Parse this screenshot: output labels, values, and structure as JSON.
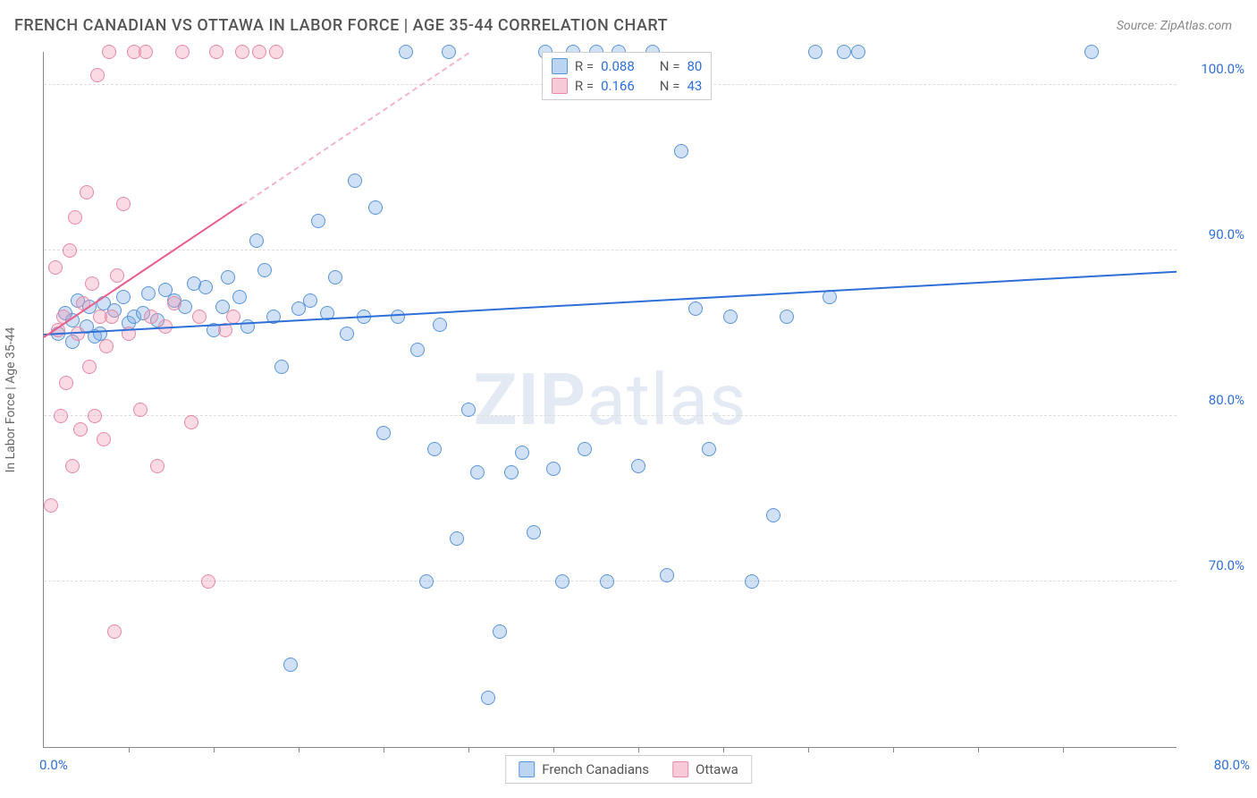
{
  "title": "FRENCH CANADIAN VS OTTAWA IN LABOR FORCE | AGE 35-44 CORRELATION CHART",
  "source": "Source: ZipAtlas.com",
  "watermark_bold": "ZIP",
  "watermark_rest": "atlas",
  "chart": {
    "type": "scatter",
    "ylabel": "In Labor Force | Age 35-44",
    "xlim": [
      0,
      80
    ],
    "ylim": [
      60,
      102
    ],
    "xticks_minor": [
      6,
      12,
      18,
      24,
      30,
      36,
      42,
      48,
      54,
      60,
      66,
      72
    ],
    "x_label_0": "0.0%",
    "x_label_max": "80.0%",
    "ygrid": [
      {
        "v": 70,
        "label": "70.0%"
      },
      {
        "v": 80,
        "label": "80.0%"
      },
      {
        "v": 90,
        "label": "90.0%"
      },
      {
        "v": 100,
        "label": "100.0%"
      }
    ],
    "colors": {
      "blue_fill": "#78aae6",
      "blue_stroke": "#5a95d8",
      "blue_line": "#2e6fd8",
      "pink_fill": "#f096af",
      "pink_stroke": "#e58aa5",
      "pink_line": "#e85f8d",
      "grid": "#dddddd",
      "axis": "#888888",
      "bg": "#ffffff",
      "text": "#555555",
      "tick_label": "#2e6fd8"
    },
    "series": [
      {
        "name": "French Canadians",
        "color_key": "blue",
        "trend": {
          "x1": 0,
          "y1": 85.0,
          "x2": 80,
          "y2": 88.8,
          "solid_until_x": 80
        },
        "points": [
          [
            1,
            85
          ],
          [
            1.5,
            86.2
          ],
          [
            2,
            84.5
          ],
          [
            2,
            85.8
          ],
          [
            2.4,
            87
          ],
          [
            3,
            85.4
          ],
          [
            3.2,
            86.6
          ],
          [
            3.6,
            84.8
          ],
          [
            4,
            85
          ],
          [
            4.2,
            86.8
          ],
          [
            5,
            86.4
          ],
          [
            5.6,
            87.2
          ],
          [
            6,
            85.6
          ],
          [
            6.4,
            86
          ],
          [
            7,
            86.2
          ],
          [
            7.4,
            87.4
          ],
          [
            8,
            85.8
          ],
          [
            8.6,
            87.6
          ],
          [
            9.2,
            87
          ],
          [
            10,
            86.6
          ],
          [
            10.6,
            88
          ],
          [
            11.4,
            87.8
          ],
          [
            12,
            85.2
          ],
          [
            12.6,
            86.6
          ],
          [
            13,
            88.4
          ],
          [
            13.8,
            87.2
          ],
          [
            14.4,
            85.4
          ],
          [
            15,
            90.6
          ],
          [
            15.6,
            88.8
          ],
          [
            16.2,
            86.0
          ],
          [
            16.8,
            83.0
          ],
          [
            17.4,
            65.0
          ],
          [
            18,
            86.5
          ],
          [
            18.8,
            87.0
          ],
          [
            19.4,
            91.8
          ],
          [
            20,
            86.2
          ],
          [
            20.6,
            88.4
          ],
          [
            21.4,
            85.0
          ],
          [
            22,
            94.2
          ],
          [
            22.6,
            86.0
          ],
          [
            23.4,
            92.6
          ],
          [
            24,
            79.0
          ],
          [
            25,
            86.0
          ],
          [
            25.6,
            102
          ],
          [
            26.4,
            84.0
          ],
          [
            27,
            70.0
          ],
          [
            27.6,
            78.0
          ],
          [
            28,
            85.5
          ],
          [
            28.6,
            102
          ],
          [
            29.2,
            72.6
          ],
          [
            30,
            80.4
          ],
          [
            30.6,
            76.6
          ],
          [
            31.4,
            63.0
          ],
          [
            32.2,
            67.0
          ],
          [
            33,
            76.6
          ],
          [
            33.8,
            77.8
          ],
          [
            34.6,
            73.0
          ],
          [
            35.4,
            102
          ],
          [
            36,
            76.8
          ],
          [
            36.6,
            70.0
          ],
          [
            37.4,
            102
          ],
          [
            38.2,
            78.0
          ],
          [
            39,
            102
          ],
          [
            39.8,
            70.0
          ],
          [
            40.6,
            102
          ],
          [
            42,
            77.0
          ],
          [
            43,
            102
          ],
          [
            44,
            70.4
          ],
          [
            45,
            96.0
          ],
          [
            46,
            86.5
          ],
          [
            47,
            78.0
          ],
          [
            48.5,
            86.0
          ],
          [
            50,
            70.0
          ],
          [
            51.5,
            74.0
          ],
          [
            52.5,
            86.0
          ],
          [
            54.5,
            102
          ],
          [
            55.5,
            87.2
          ],
          [
            56.5,
            102
          ],
          [
            57.5,
            102
          ],
          [
            74,
            102
          ]
        ]
      },
      {
        "name": "Ottawa",
        "color_key": "pink",
        "trend": {
          "x1": 0,
          "y1": 84.8,
          "x2": 30,
          "y2": 102,
          "solid_until_x": 14
        },
        "points": [
          [
            0.5,
            74.6
          ],
          [
            0.8,
            89.0
          ],
          [
            1.0,
            85.2
          ],
          [
            1.2,
            80.0
          ],
          [
            1.4,
            86.0
          ],
          [
            1.6,
            82.0
          ],
          [
            1.8,
            90.0
          ],
          [
            2.0,
            77.0
          ],
          [
            2.2,
            92.0
          ],
          [
            2.4,
            85.0
          ],
          [
            2.6,
            79.2
          ],
          [
            2.8,
            86.8
          ],
          [
            3.0,
            93.5
          ],
          [
            3.2,
            83.0
          ],
          [
            3.4,
            88.0
          ],
          [
            3.6,
            80.0
          ],
          [
            3.8,
            100.6
          ],
          [
            4.0,
            86.0
          ],
          [
            4.2,
            78.6
          ],
          [
            4.4,
            84.2
          ],
          [
            4.6,
            102
          ],
          [
            4.8,
            86.0
          ],
          [
            5.0,
            67.0
          ],
          [
            5.2,
            88.5
          ],
          [
            5.6,
            92.8
          ],
          [
            6.0,
            85.0
          ],
          [
            6.4,
            102
          ],
          [
            6.8,
            80.4
          ],
          [
            7.2,
            102
          ],
          [
            7.6,
            86.0
          ],
          [
            8.0,
            77.0
          ],
          [
            8.6,
            85.4
          ],
          [
            9.2,
            86.8
          ],
          [
            9.8,
            102
          ],
          [
            10.4,
            79.6
          ],
          [
            11.0,
            86.0
          ],
          [
            11.6,
            70.0
          ],
          [
            12.2,
            102
          ],
          [
            12.8,
            85.2
          ],
          [
            13.4,
            86.0
          ],
          [
            14.0,
            102
          ],
          [
            15.2,
            102
          ],
          [
            16.4,
            102
          ]
        ]
      }
    ],
    "stats": [
      {
        "color_key": "blue",
        "R_label": "R = ",
        "R": "0.088",
        "N_label": "N = ",
        "N": "80"
      },
      {
        "color_key": "pink",
        "R_label": "R = ",
        "R": "0.166",
        "N_label": "N = ",
        "N": "43"
      }
    ],
    "legend": [
      {
        "color_key": "blue",
        "label": "French Canadians"
      },
      {
        "color_key": "pink",
        "label": "Ottawa"
      }
    ]
  }
}
